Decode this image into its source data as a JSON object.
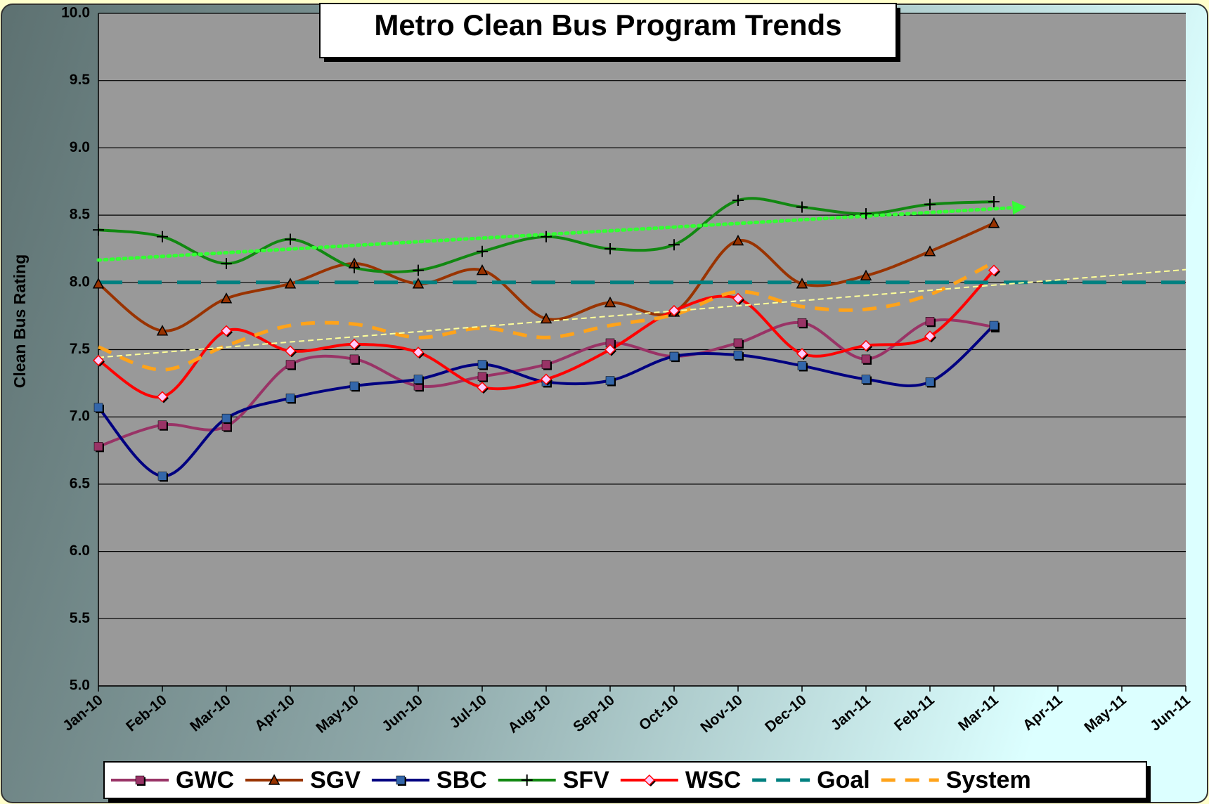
{
  "chart_data": {
    "type": "line",
    "title": "Metro Clean Bus Program Trends",
    "y_label": "Clean Bus Rating",
    "categories": [
      "Jan-10",
      "Feb-10",
      "Mar-10",
      "Apr-10",
      "May-10",
      "Jun-10",
      "Jul-10",
      "Aug-10",
      "Sep-10",
      "Oct-10",
      "Nov-10",
      "Dec-10",
      "Jan-11",
      "Feb-11",
      "Mar-11",
      "Apr-11",
      "May-11",
      "Jun-11"
    ],
    "ylim": [
      5,
      10
    ],
    "yticks": [
      {
        "value": 5,
        "label": "5.0"
      },
      {
        "value": 5.5,
        "label": "5.5"
      },
      {
        "value": 6,
        "label": "6.0"
      },
      {
        "value": 6.5,
        "label": "6.5"
      },
      {
        "value": 7,
        "label": "7.0"
      },
      {
        "value": 7.5,
        "label": "7.5"
      },
      {
        "value": 8,
        "label": "8.0"
      },
      {
        "value": 8.5,
        "label": "8.5"
      },
      {
        "value": 9,
        "label": "9.0"
      },
      {
        "value": 9.5,
        "label": "9.5"
      },
      {
        "value": 10,
        "label": "10.0"
      }
    ],
    "grid": true,
    "legend": "bottom",
    "series": [
      {
        "name": "GWC",
        "color": "#993366",
        "marker": "square",
        "values": [
          6.78,
          6.94,
          6.93,
          7.39,
          7.43,
          7.23,
          7.3,
          7.39,
          7.55,
          7.45,
          7.55,
          7.7,
          7.43,
          7.71,
          7.67,
          null,
          null,
          null
        ]
      },
      {
        "name": "SGV",
        "color": "#993300",
        "marker": "triangle",
        "values": [
          7.99,
          7.64,
          7.88,
          7.99,
          8.14,
          7.99,
          8.09,
          7.73,
          7.85,
          7.78,
          8.31,
          7.99,
          8.05,
          8.23,
          8.44,
          null,
          null,
          null
        ]
      },
      {
        "name": "SBC",
        "color": "#000080",
        "marker": "square-blue",
        "values": [
          7.07,
          6.56,
          6.99,
          7.14,
          7.23,
          7.28,
          7.39,
          7.26,
          7.27,
          7.45,
          7.46,
          7.38,
          7.28,
          7.26,
          7.68,
          null,
          null,
          null
        ]
      },
      {
        "name": "SFV",
        "color": "#118811",
        "marker": "plus",
        "values": [
          8.39,
          8.34,
          8.14,
          8.32,
          8.11,
          8.09,
          8.23,
          8.34,
          8.25,
          8.28,
          8.61,
          8.56,
          8.51,
          8.58,
          8.6,
          null,
          null,
          null
        ],
        "trendline": {
          "color": "#33ff33",
          "style": "dotted",
          "forward": 0.4,
          "arrow": true
        }
      },
      {
        "name": "WSC",
        "color": "#ff0000",
        "marker": "diamond",
        "values": [
          7.42,
          7.15,
          7.64,
          7.49,
          7.54,
          7.48,
          7.22,
          7.28,
          7.5,
          7.79,
          7.88,
          7.47,
          7.53,
          7.6,
          8.09,
          null,
          null,
          null
        ]
      },
      {
        "name": "Goal",
        "color": "#008080",
        "marker": "none",
        "style": "dashed",
        "smooth": false,
        "values": [
          8,
          8,
          8,
          8,
          8,
          8,
          8,
          8,
          8,
          8,
          8,
          8,
          8,
          8,
          8,
          8,
          8,
          8
        ]
      },
      {
        "name": "System",
        "color": "#ffa31a",
        "marker": "none",
        "style": "dashed",
        "values": [
          7.52,
          7.35,
          7.53,
          7.68,
          7.69,
          7.59,
          7.66,
          7.59,
          7.68,
          7.76,
          7.93,
          7.82,
          7.8,
          7.91,
          8.15,
          null,
          null,
          null
        ],
        "trendline": {
          "color": "#ffff99",
          "style": "dashed",
          "forward": 3,
          "arrow": false
        }
      }
    ]
  }
}
